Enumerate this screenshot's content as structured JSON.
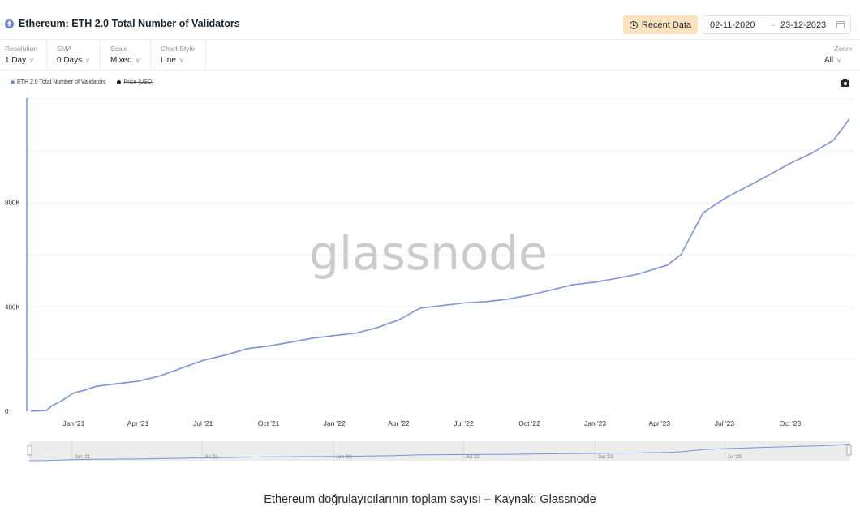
{
  "header": {
    "title": "Ethereum: ETH 2.0 Total Number of Validators",
    "recent_label": "Recent Data",
    "date_start": "02-11-2020",
    "date_arrow": "→",
    "date_end": "23-12-2023"
  },
  "toolbar": {
    "resolution": {
      "label": "Resolution",
      "value": "1 Day"
    },
    "sma": {
      "label": "SMA",
      "value": "0 Days"
    },
    "scale": {
      "label": "Scale",
      "value": "Mixed"
    },
    "chart_style": {
      "label": "Chart Style",
      "value": "Line"
    },
    "zoom": {
      "label": "Zoom",
      "value": "All"
    }
  },
  "legend": {
    "series": "ETH 2.0 Total Number of Validators",
    "hidden": "Price [USD]"
  },
  "watermark": "glassnode",
  "caption": "Ethereum doğrulayıcılarının toplam sayısı – Kaynak: Glassnode",
  "colors": {
    "series": "#7e8fdc",
    "watermark": "#c9c9c9",
    "hidden_series": "#222222"
  },
  "chart_data": {
    "type": "line",
    "title": "Ethereum: ETH 2.0 Total Number of Validators",
    "xlabel": "",
    "ylabel": "",
    "x_range": [
      "2020-11-02",
      "2023-12-23"
    ],
    "ylim": [
      0,
      1200000
    ],
    "yticks": [
      0,
      400000,
      800000
    ],
    "ytick_labels": [
      "0",
      "400K",
      "800K"
    ],
    "xticks": [
      "2021-01-01",
      "2021-04-01",
      "2021-07-01",
      "2021-10-01",
      "2022-01-01",
      "2022-04-01",
      "2022-07-01",
      "2022-10-01",
      "2023-01-01",
      "2023-04-01",
      "2023-07-01",
      "2023-10-01"
    ],
    "xtick_labels": [
      "Jan '21",
      "Apr '21",
      "Jul '21",
      "Oct '21",
      "Jan '22",
      "Apr '22",
      "Jul '22",
      "Oct '22",
      "Jan '23",
      "Apr '23",
      "Jul '23",
      "Oct '23"
    ],
    "navigator_labels": [
      "Jan '21",
      "Jul '21",
      "Jan '22",
      "Jul '22",
      "Jan '23",
      "Jul '23"
    ],
    "navigator_ticks": [
      "2021-01-01",
      "2021-07-01",
      "2022-01-01",
      "2022-07-01",
      "2023-01-01",
      "2023-07-01"
    ],
    "grid": true,
    "legend_position": "top-left",
    "series": [
      {
        "name": "ETH 2.0 Total Number of Validators",
        "x": [
          "2020-11-02",
          "2020-11-24",
          "2020-12-01",
          "2020-12-15",
          "2021-01-01",
          "2021-01-15",
          "2021-02-01",
          "2021-03-01",
          "2021-04-01",
          "2021-05-01",
          "2021-06-01",
          "2021-07-01",
          "2021-08-01",
          "2021-09-01",
          "2021-10-01",
          "2021-11-01",
          "2021-12-01",
          "2022-01-01",
          "2022-02-01",
          "2022-03-01",
          "2022-04-01",
          "2022-05-01",
          "2022-06-01",
          "2022-07-01",
          "2022-08-01",
          "2022-09-01",
          "2022-10-01",
          "2022-11-01",
          "2022-12-01",
          "2023-01-01",
          "2023-02-01",
          "2023-03-01",
          "2023-04-12",
          "2023-05-01",
          "2023-06-01",
          "2023-07-01",
          "2023-08-01",
          "2023-09-01",
          "2023-10-01",
          "2023-11-01",
          "2023-12-01",
          "2023-12-23"
        ],
        "values": [
          0,
          3000,
          20000,
          40000,
          70000,
          80000,
          95000,
          105000,
          115000,
          135000,
          165000,
          195000,
          215000,
          240000,
          250000,
          265000,
          280000,
          290000,
          300000,
          320000,
          350000,
          395000,
          405000,
          415000,
          420000,
          430000,
          445000,
          465000,
          485000,
          495000,
          510000,
          525000,
          560000,
          600000,
          760000,
          815000,
          860000,
          905000,
          950000,
          990000,
          1040000,
          1120000
        ]
      }
    ]
  }
}
